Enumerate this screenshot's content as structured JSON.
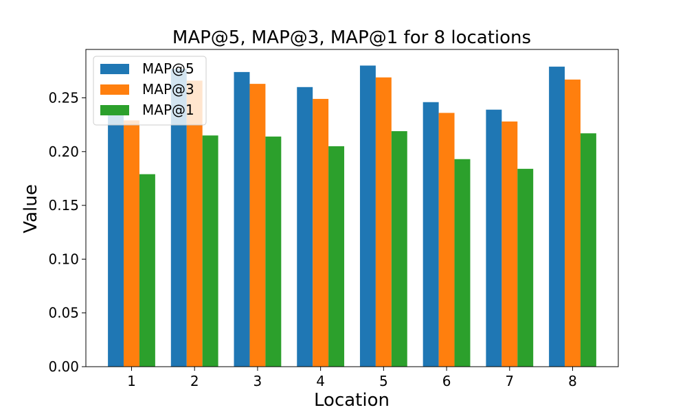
{
  "chart_data": {
    "type": "bar",
    "title": "MAP@5, MAP@3, MAP@1 for 8 locations",
    "xlabel": "Location",
    "ylabel": "Value",
    "categories": [
      "1",
      "2",
      "3",
      "4",
      "5",
      "6",
      "7",
      "8"
    ],
    "ylim": [
      0,
      0.295
    ],
    "yticks": [
      "0.00",
      "0.05",
      "0.10",
      "0.15",
      "0.20",
      "0.25"
    ],
    "grid": false,
    "legend_position": "top-left",
    "series": [
      {
        "name": "MAP@5",
        "color": "#1f77b4",
        "values": [
          0.24,
          0.277,
          0.274,
          0.26,
          0.28,
          0.246,
          0.239,
          0.279
        ]
      },
      {
        "name": "MAP@3",
        "color": "#ff7f0e",
        "values": [
          0.229,
          0.266,
          0.263,
          0.249,
          0.269,
          0.236,
          0.228,
          0.267
        ]
      },
      {
        "name": "MAP@1",
        "color": "#2ca02c",
        "values": [
          0.179,
          0.215,
          0.214,
          0.205,
          0.219,
          0.193,
          0.184,
          0.217
        ]
      }
    ]
  }
}
